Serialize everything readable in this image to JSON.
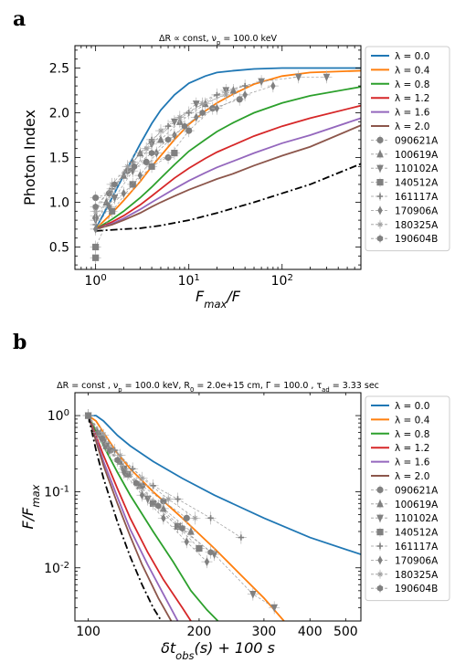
{
  "panels": [
    {
      "letter": "a"
    },
    {
      "letter": "b"
    }
  ],
  "chart_data": [
    {
      "type": "line",
      "title": "ΔR ∝ const, ν_p = 100.0 keV",
      "xlabel": "F_max/F",
      "ylabel": "Photon Index",
      "xscale": "log",
      "xlim": [
        0.6,
        700
      ],
      "ylim": [
        0.25,
        2.75
      ],
      "x_tick_labels": [
        "10^0",
        "10^1",
        "10^2"
      ],
      "y_tick_labels": [
        "0.5",
        "1.0",
        "1.5",
        "2.0",
        "2.5"
      ],
      "y_ticks": [
        0.5,
        1.0,
        1.5,
        2.0,
        2.5
      ],
      "legend_position": "outside-right",
      "series": [
        {
          "name": "λ = 0.0",
          "color": "#1f77b4",
          "x": [
            1.0,
            1.5,
            2,
            3,
            4,
            5,
            7,
            10,
            15,
            20,
            30,
            50,
            100,
            200,
            700
          ],
          "y": [
            0.7,
            1.05,
            1.3,
            1.65,
            1.88,
            2.03,
            2.2,
            2.33,
            2.41,
            2.45,
            2.47,
            2.49,
            2.5,
            2.5,
            2.5
          ]
        },
        {
          "name": "λ = 0.4",
          "color": "#ff7f0e",
          "x": [
            1.0,
            1.5,
            2,
            3,
            4,
            5,
            7,
            10,
            15,
            20,
            30,
            50,
            100,
            200,
            700
          ],
          "y": [
            0.7,
            0.88,
            1.02,
            1.23,
            1.4,
            1.52,
            1.7,
            1.87,
            2.02,
            2.11,
            2.21,
            2.32,
            2.41,
            2.45,
            2.47
          ]
        },
        {
          "name": "λ = 0.8",
          "color": "#2ca02c",
          "x": [
            1.0,
            1.5,
            2,
            3,
            4,
            5,
            7,
            10,
            15,
            20,
            30,
            50,
            100,
            200,
            700
          ],
          "y": [
            0.7,
            0.81,
            0.9,
            1.05,
            1.17,
            1.27,
            1.42,
            1.57,
            1.7,
            1.79,
            1.89,
            2.0,
            2.11,
            2.19,
            2.29
          ]
        },
        {
          "name": "λ = 1.2",
          "color": "#d62728",
          "x": [
            1.0,
            1.5,
            2,
            3,
            4,
            5,
            7,
            10,
            15,
            20,
            30,
            50,
            100,
            200,
            700
          ],
          "y": [
            0.7,
            0.78,
            0.85,
            0.97,
            1.07,
            1.15,
            1.27,
            1.38,
            1.49,
            1.56,
            1.64,
            1.74,
            1.85,
            1.94,
            2.08
          ]
        },
        {
          "name": "λ = 1.6",
          "color": "#9467bd",
          "x": [
            1.0,
            1.5,
            2,
            3,
            4,
            5,
            7,
            10,
            15,
            20,
            30,
            50,
            100,
            200,
            700
          ],
          "y": [
            0.7,
            0.76,
            0.82,
            0.92,
            1.0,
            1.06,
            1.15,
            1.24,
            1.33,
            1.39,
            1.46,
            1.55,
            1.66,
            1.75,
            1.94
          ]
        },
        {
          "name": "λ = 2.0",
          "color": "#8c564b",
          "x": [
            1.0,
            1.5,
            2,
            3,
            4,
            5,
            7,
            10,
            15,
            20,
            30,
            50,
            100,
            200,
            700
          ],
          "y": [
            0.7,
            0.75,
            0.8,
            0.88,
            0.95,
            1.0,
            1.07,
            1.14,
            1.21,
            1.26,
            1.32,
            1.41,
            1.52,
            1.62,
            1.86
          ]
        },
        {
          "name": "",
          "color": "#000000",
          "dash": "dashdot",
          "x": [
            1.0,
            2,
            3,
            5,
            10,
            20,
            50,
            100,
            200,
            700
          ],
          "y": [
            0.68,
            0.7,
            0.71,
            0.74,
            0.8,
            0.88,
            1.0,
            1.1,
            1.2,
            1.43
          ]
        }
      ],
      "observations": [
        {
          "name": "090621A",
          "marker": "circle",
          "color": "#808080",
          "x": [
            1.0,
            1.4,
            2.2,
            3.5,
            6,
            10,
            18,
            35
          ],
          "y": [
            1.05,
            1.1,
            1.35,
            1.45,
            1.5,
            1.8,
            2.05,
            2.15
          ]
        },
        {
          "name": "100619A",
          "marker": "triangle-up",
          "color": "#808080",
          "x": [
            1.0,
            1.3,
            2.0,
            3.0,
            5,
            8,
            15,
            30
          ],
          "y": [
            0.85,
            1.0,
            1.3,
            1.55,
            1.7,
            1.9,
            2.1,
            2.25
          ]
        },
        {
          "name": "110102A",
          "marker": "triangle-down",
          "color": "#808080",
          "x": [
            1.0,
            1.6,
            2.5,
            4,
            7,
            12,
            25,
            60,
            150,
            300
          ],
          "y": [
            0.8,
            1.05,
            1.35,
            1.65,
            1.9,
            2.1,
            2.25,
            2.35,
            2.4,
            2.4
          ]
        },
        {
          "name": "140512A",
          "marker": "square",
          "color": "#808080",
          "x": [
            1.0,
            1.0,
            1.5,
            2.5,
            4,
            7
          ],
          "y": [
            0.38,
            0.5,
            0.9,
            1.2,
            1.4,
            1.55
          ]
        },
        {
          "name": "161117A",
          "marker": "plus",
          "color": "#808080",
          "x": [
            1.0,
            1.5,
            2.5,
            4,
            6,
            10,
            20,
            40
          ],
          "y": [
            0.75,
            1.15,
            1.45,
            1.7,
            1.85,
            2.0,
            2.2,
            2.3
          ]
        },
        {
          "name": "170906A",
          "marker": "diamond",
          "color": "#808080",
          "x": [
            1.0,
            1.4,
            2.0,
            3.0,
            4.5,
            7,
            12,
            20,
            40,
            80
          ],
          "y": [
            0.7,
            0.95,
            1.1,
            1.3,
            1.55,
            1.75,
            1.95,
            2.05,
            2.2,
            2.3
          ]
        },
        {
          "name": "180325A",
          "marker": "star",
          "color": "#a0a0a0",
          "x": [
            1.0,
            1.5,
            2.2,
            3.5,
            5,
            8,
            14,
            25
          ],
          "y": [
            0.9,
            1.2,
            1.4,
            1.6,
            1.8,
            1.95,
            2.1,
            2.2
          ]
        },
        {
          "name": "190604B",
          "marker": "hexagon",
          "color": "#808080",
          "x": [
            1.0,
            1.6,
            2.6,
            4,
            6,
            9,
            14
          ],
          "y": [
            0.95,
            1.2,
            1.4,
            1.55,
            1.7,
            1.85,
            2.0
          ]
        }
      ]
    },
    {
      "type": "line",
      "title": "ΔR = const ,   ν_p = 100.0 keV,   R_0 = 2.0e+15 cm,   Γ = 100.0   , τ_ad = 3.33 sec",
      "xlabel": "δt_obs(s) + 100 s",
      "ylabel": "F/F_max",
      "xscale": "log",
      "yscale": "log",
      "xlim": [
        92,
        550
      ],
      "ylim": [
        0.002,
        2.0
      ],
      "x_tick_labels": [
        "100",
        "200",
        "300",
        "400",
        "500"
      ],
      "x_ticks": [
        100,
        200,
        300,
        400,
        500
      ],
      "y_tick_labels": [
        "10^0",
        "10^-1",
        "10^-2"
      ],
      "legend_position": "outside-right",
      "series": [
        {
          "name": "λ = 0.0",
          "color": "#1f77b4",
          "x": [
            100,
            105,
            110,
            120,
            130,
            150,
            180,
            220,
            300,
            400,
            550
          ],
          "y": [
            1.0,
            1.0,
            0.85,
            0.55,
            0.4,
            0.25,
            0.15,
            0.09,
            0.045,
            0.025,
            0.015
          ]
        },
        {
          "name": "λ = 0.4",
          "color": "#ff7f0e",
          "x": [
            100,
            105,
            110,
            120,
            130,
            150,
            180,
            220,
            260,
            300,
            340
          ],
          "y": [
            1.0,
            0.85,
            0.6,
            0.32,
            0.2,
            0.1,
            0.045,
            0.018,
            0.008,
            0.004,
            0.002
          ]
        },
        {
          "name": "λ = 0.8",
          "color": "#2ca02c",
          "x": [
            100,
            110,
            120,
            130,
            150,
            170,
            190,
            210,
            225
          ],
          "y": [
            1.0,
            0.4,
            0.18,
            0.09,
            0.03,
            0.012,
            0.005,
            0.0028,
            0.002
          ]
        },
        {
          "name": "λ = 1.2",
          "color": "#d62728",
          "x": [
            100,
            110,
            120,
            130,
            145,
            160,
            180,
            190
          ],
          "y": [
            1.0,
            0.3,
            0.11,
            0.045,
            0.016,
            0.007,
            0.003,
            0.002
          ]
        },
        {
          "name": "λ = 1.6",
          "color": "#9467bd",
          "x": [
            100,
            110,
            120,
            130,
            145,
            160,
            175
          ],
          "y": [
            1.0,
            0.25,
            0.085,
            0.032,
            0.011,
            0.0045,
            0.002
          ]
        },
        {
          "name": "λ = 2.0",
          "color": "#8c564b",
          "x": [
            100,
            110,
            120,
            130,
            140,
            155,
            168
          ],
          "y": [
            1.0,
            0.22,
            0.07,
            0.026,
            0.011,
            0.004,
            0.002
          ]
        },
        {
          "name": "",
          "color": "#000000",
          "dash": "dashdot",
          "x": [
            100,
            105,
            110,
            120,
            130,
            140,
            150,
            158
          ],
          "y": [
            1.0,
            0.35,
            0.15,
            0.04,
            0.014,
            0.006,
            0.003,
            0.002
          ]
        }
      ],
      "observations": [
        {
          "name": "090621A",
          "marker": "circle",
          "color": "#808080",
          "x": [
            100,
            108,
            115,
            125,
            140,
            160,
            185
          ],
          "y": [
            1.0,
            0.55,
            0.35,
            0.2,
            0.12,
            0.075,
            0.045
          ]
        },
        {
          "name": "100619A",
          "marker": "triangle-up",
          "color": "#808080",
          "x": [
            100,
            110,
            122,
            138,
            160,
            190
          ],
          "y": [
            1.0,
            0.5,
            0.25,
            0.12,
            0.06,
            0.03
          ]
        },
        {
          "name": "110102A",
          "marker": "triangle-down",
          "color": "#808080",
          "x": [
            100,
            110,
            125,
            145,
            175,
            220,
            280,
            320
          ],
          "y": [
            1.0,
            0.45,
            0.2,
            0.08,
            0.035,
            0.015,
            0.0045,
            0.003
          ]
        },
        {
          "name": "140512A",
          "marker": "square",
          "color": "#808080",
          "x": [
            100,
            112,
            128,
            150,
            175,
            200
          ],
          "y": [
            1.0,
            0.4,
            0.17,
            0.07,
            0.035,
            0.018
          ]
        },
        {
          "name": "161117A",
          "marker": "plus",
          "color": "#808080",
          "x": [
            100,
            108,
            118,
            132,
            150,
            175,
            215,
            260
          ],
          "y": [
            1.0,
            0.6,
            0.35,
            0.2,
            0.12,
            0.08,
            0.045,
            0.025
          ]
        },
        {
          "name": "170906A",
          "marker": "diamond",
          "color": "#808080",
          "x": [
            100,
            106,
            114,
            125,
            140,
            160,
            185,
            210
          ],
          "y": [
            1.0,
            0.6,
            0.35,
            0.18,
            0.09,
            0.045,
            0.022,
            0.012
          ]
        },
        {
          "name": "180325A",
          "marker": "star",
          "color": "#a0a0a0",
          "x": [
            100,
            110,
            122,
            140,
            165,
            195
          ],
          "y": [
            1.0,
            0.55,
            0.3,
            0.15,
            0.08,
            0.045
          ]
        },
        {
          "name": "190604B",
          "marker": "hexagon",
          "color": "#808080",
          "x": [
            100,
            109,
            120,
            135,
            155,
            180,
            215
          ],
          "y": [
            1.0,
            0.5,
            0.26,
            0.13,
            0.065,
            0.033,
            0.016
          ]
        }
      ]
    }
  ]
}
